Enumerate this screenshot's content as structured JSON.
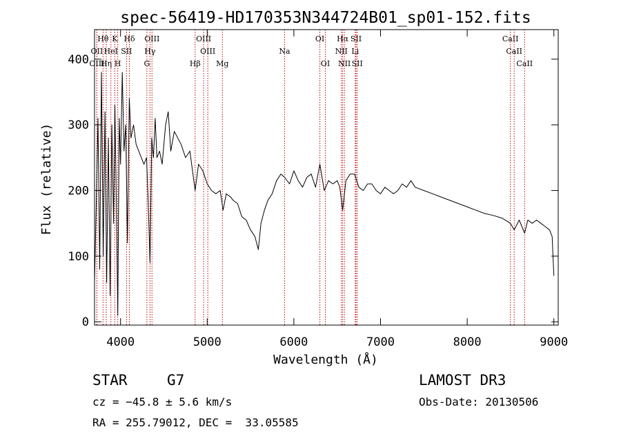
{
  "chart_data": {
    "type": "line",
    "title": "spec-56419-HD170353N344724B01_sp01-152.fits",
    "xlabel": "Wavelength (Å)",
    "ylabel": "Flux (relative)",
    "xlim": [
      3700,
      9050
    ],
    "ylim": [
      -5,
      445
    ],
    "x_ticks": [
      4000,
      5000,
      6000,
      7000,
      8000,
      9000
    ],
    "y_ticks": [
      0,
      100,
      200,
      300,
      400
    ],
    "grid": false,
    "series": [
      {
        "name": "flux",
        "x": [
          3700,
          3720,
          3740,
          3760,
          3780,
          3800,
          3820,
          3840,
          3860,
          3880,
          3900,
          3920,
          3935,
          3950,
          3968,
          3985,
          4000,
          4020,
          4040,
          4060,
          4080,
          4101,
          4120,
          4150,
          4180,
          4210,
          4240,
          4270,
          4300,
          4320,
          4340,
          4360,
          4380,
          4400,
          4420,
          4450,
          4480,
          4520,
          4550,
          4580,
          4620,
          4660,
          4700,
          4750,
          4800,
          4861,
          4900,
          4950,
          5000,
          5050,
          5100,
          5150,
          5183,
          5220,
          5270,
          5300,
          5350,
          5400,
          5450,
          5500,
          5550,
          5590,
          5620,
          5660,
          5700,
          5750,
          5800,
          5850,
          5893,
          5950,
          6000,
          6050,
          6100,
          6150,
          6200,
          6250,
          6300,
          6350,
          6400,
          6450,
          6500,
          6530,
          6563,
          6600,
          6650,
          6700,
          6750,
          6800,
          6850,
          6900,
          6950,
          7000,
          7050,
          7100,
          7150,
          7200,
          7250,
          7300,
          7350,
          7400,
          7500,
          7600,
          7700,
          7800,
          7900,
          8000,
          8100,
          8200,
          8300,
          8400,
          8498,
          8542,
          8600,
          8662,
          8700,
          8750,
          8800,
          8850,
          8900,
          8950,
          8980,
          9000
        ],
        "y": [
          60,
          180,
          310,
          80,
          380,
          100,
          320,
          60,
          280,
          40,
          300,
          150,
          330,
          200,
          10,
          310,
          240,
          380,
          260,
          300,
          120,
          340,
          280,
          300,
          270,
          260,
          250,
          240,
          250,
          180,
          90,
          280,
          250,
          310,
          250,
          260,
          240,
          300,
          320,
          260,
          290,
          280,
          270,
          250,
          260,
          200,
          240,
          230,
          210,
          200,
          195,
          200,
          170,
          195,
          190,
          185,
          180,
          160,
          155,
          140,
          130,
          110,
          150,
          170,
          185,
          195,
          215,
          225,
          220,
          210,
          230,
          215,
          205,
          220,
          225,
          205,
          240,
          200,
          215,
          210,
          215,
          205,
          170,
          215,
          225,
          225,
          205,
          200,
          210,
          210,
          200,
          195,
          205,
          200,
          195,
          200,
          210,
          205,
          215,
          205,
          200,
          195,
          190,
          185,
          180,
          175,
          170,
          165,
          162,
          158,
          150,
          140,
          155,
          135,
          155,
          150,
          155,
          150,
          145,
          140,
          130,
          70
        ]
      }
    ],
    "line_markers": [
      {
        "label": "OII",
        "wavelength": 3727,
        "row": 2
      },
      {
        "label": "Hθ",
        "wavelength": 3798,
        "row": 1
      },
      {
        "label": "OIII",
        "wavelength": 3727,
        "row": 3
      },
      {
        "label": "HeI",
        "wavelength": 3889,
        "row": 2
      },
      {
        "label": "Hη",
        "wavelength": 3835,
        "row": 3
      },
      {
        "label": "K",
        "wavelength": 3934,
        "row": 1
      },
      {
        "label": "SII",
        "wavelength": 4069,
        "row": 2
      },
      {
        "label": "H",
        "wavelength": 3968,
        "row": 3
      },
      {
        "label": "Hδ",
        "wavelength": 4102,
        "row": 1
      },
      {
        "label": "OIII",
        "wavelength": 4363,
        "row": 1
      },
      {
        "label": "Hγ",
        "wavelength": 4340,
        "row": 2
      },
      {
        "label": "G",
        "wavelength": 4304,
        "row": 3
      },
      {
        "label": "Hβ",
        "wavelength": 4861,
        "row": 3
      },
      {
        "label": "OIII",
        "wavelength": 4959,
        "row": 1
      },
      {
        "label": "OIII",
        "wavelength": 5007,
        "row": 2
      },
      {
        "label": "Mg",
        "wavelength": 5175,
        "row": 3
      },
      {
        "label": "Na",
        "wavelength": 5893,
        "row": 2
      },
      {
        "label": "OI",
        "wavelength": 6300,
        "row": 1
      },
      {
        "label": "OI",
        "wavelength": 6363,
        "row": 3
      },
      {
        "label": "Hα",
        "wavelength": 6563,
        "row": 1
      },
      {
        "label": "NII",
        "wavelength": 6548,
        "row": 2
      },
      {
        "label": "NII",
        "wavelength": 6583,
        "row": 3
      },
      {
        "label": "SII",
        "wavelength": 6717,
        "row": 1
      },
      {
        "label": "Li",
        "wavelength": 6708,
        "row": 2
      },
      {
        "label": "SII",
        "wavelength": 6731,
        "row": 3
      },
      {
        "label": "CaII",
        "wavelength": 8498,
        "row": 1
      },
      {
        "label": "CaII",
        "wavelength": 8542,
        "row": 2
      },
      {
        "label": "CaII",
        "wavelength": 8662,
        "row": 3
      }
    ]
  },
  "colors": {
    "spectrum": "#000000",
    "marker_line": "#c00000",
    "axis": "#000000"
  },
  "info": {
    "object_class": "STAR",
    "subclass": "G7",
    "cz": "cz = −45.8 ± 5.6 km/s",
    "coords": "RA = 255.79012, DEC =  33.05585",
    "survey": "LAMOST DR3",
    "obs_date": "Obs-Date: 20130506"
  }
}
